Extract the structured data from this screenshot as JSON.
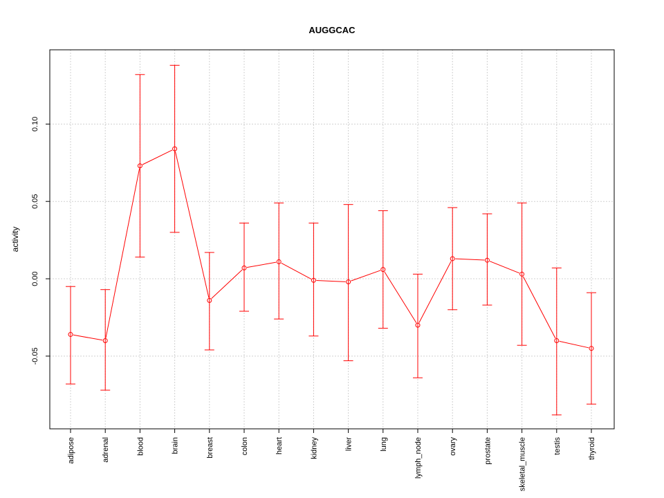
{
  "chart_data": {
    "type": "line",
    "title": "AUGGCAC",
    "xlabel": "",
    "ylabel": "activity",
    "categories": [
      "adipose",
      "adrenal",
      "blood",
      "brain",
      "breast",
      "colon",
      "heart",
      "kidney",
      "liver",
      "lung",
      "lymph_node",
      "ovary",
      "prostate",
      "skeletal_muscle",
      "testis",
      "thyroid"
    ],
    "series": [
      {
        "values": [
          -0.036,
          -0.04,
          0.073,
          0.084,
          -0.014,
          0.007,
          0.011,
          -0.001,
          -0.002,
          0.006,
          -0.03,
          0.013,
          0.012,
          0.003,
          -0.04,
          -0.045
        ],
        "upper": [
          -0.005,
          -0.007,
          0.132,
          0.138,
          0.017,
          0.036,
          0.049,
          0.036,
          0.048,
          0.044,
          0.003,
          0.046,
          0.042,
          0.049,
          0.007,
          -0.009
        ],
        "lower": [
          -0.068,
          -0.072,
          0.014,
          0.03,
          -0.046,
          -0.021,
          -0.026,
          -0.037,
          -0.053,
          -0.032,
          -0.064,
          -0.02,
          -0.017,
          -0.043,
          -0.088,
          -0.081
        ]
      }
    ],
    "ylim": [
      -0.097,
      0.148
    ],
    "yticks": [
      -0.05,
      0.0,
      0.05,
      0.1
    ],
    "ytick_labels": [
      "-0.05",
      "0.00",
      "0.05",
      "0.10"
    ],
    "grid": true,
    "color": "#ff0000"
  }
}
